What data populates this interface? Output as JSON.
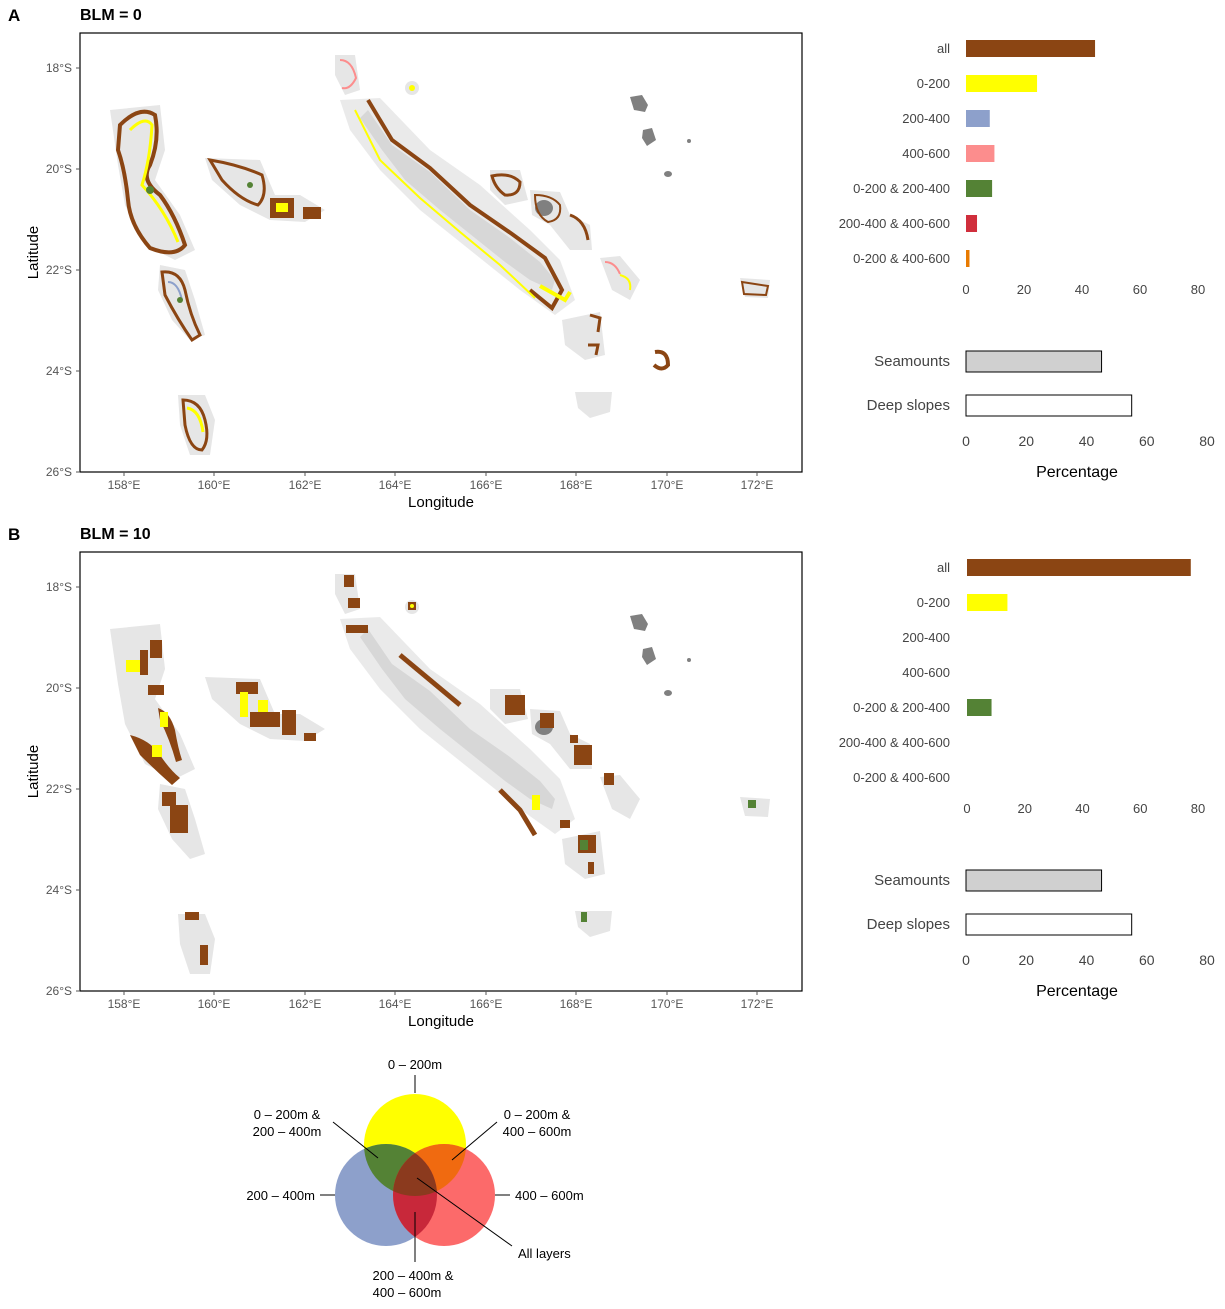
{
  "colors": {
    "all": "#8B4513",
    "d0_200": "#FFFF00",
    "d200_400": "#8DA0CB",
    "d400_600": "#FC8D8D",
    "d0_200_200_400": "#548235",
    "d200_400_400_600": "#D02E3C",
    "d0_200_400_600": "#E87A00",
    "land": "#808080",
    "seamounts": "#D0D0D0",
    "deep_slopes": "#FFFFFF",
    "mask": "#E6E6E6"
  },
  "map": {
    "x_ticks": [
      "158°E",
      "160°E",
      "162°E",
      "164°E",
      "166°E",
      "168°E",
      "170°E",
      "172°E"
    ],
    "y_ticks": [
      "18°S",
      "20°S",
      "22°S",
      "24°S",
      "26°S"
    ],
    "xlabel": "Longitude",
    "ylabel": "Latitude"
  },
  "chart_data": [
    {
      "panel": "A",
      "title": "BLM = 0",
      "type": "bar",
      "orientation": "horizontal",
      "categories": [
        "all",
        "0-200",
        "200-400",
        "400-600",
        "0-200 & 200-400",
        "200-400 & 400-600",
        "0-200 & 400-600"
      ],
      "values": [
        44.5,
        24.5,
        8.2,
        9.8,
        9.0,
        3.8,
        1.2
      ],
      "color_keys": [
        "all",
        "d0_200",
        "d200_400",
        "d400_600",
        "d0_200_200_400",
        "d200_400_400_600",
        "d0_200_400_600"
      ],
      "x_ticks": [
        0,
        20,
        40,
        60,
        80
      ],
      "xlim": [
        0,
        80
      ],
      "secondary": {
        "categories": [
          "Seamounts",
          "Deep slopes"
        ],
        "values": [
          45,
          55
        ],
        "color_keys": [
          "seamounts",
          "deep_slopes"
        ],
        "x_ticks": [
          0,
          20,
          40,
          60,
          80
        ],
        "xlim": [
          0,
          80
        ],
        "xlabel": "Percentage"
      }
    },
    {
      "panel": "B",
      "title": "BLM = 10",
      "type": "bar",
      "orientation": "horizontal",
      "categories": [
        "all",
        "0-200",
        "200-400",
        "400-600",
        "0-200 & 200-400",
        "200-400 & 400-600",
        "0-200 & 400-600"
      ],
      "values": [
        77.5,
        14.0,
        0,
        0,
        8.5,
        0,
        0
      ],
      "color_keys": [
        "all",
        "d0_200",
        "d200_400",
        "d400_600",
        "d0_200_200_400",
        "d200_400_400_600",
        "d0_200_400_600"
      ],
      "x_ticks": [
        0,
        20,
        40,
        60,
        80
      ],
      "xlim": [
        0,
        80
      ],
      "secondary": {
        "categories": [
          "Seamounts",
          "Deep slopes"
        ],
        "values": [
          45,
          55
        ],
        "color_keys": [
          "seamounts",
          "deep_slopes"
        ],
        "x_ticks": [
          0,
          20,
          40,
          60,
          80
        ],
        "xlim": [
          0,
          80
        ],
        "xlabel": "Percentage"
      }
    }
  ],
  "legend": {
    "top": "0 – 200m",
    "top_left": [
      "0 – 200m &",
      "200 – 400m"
    ],
    "top_right": [
      "0 – 200m &",
      "400 – 600m"
    ],
    "left": "200 – 400m",
    "right": "400 – 600m",
    "bottom": [
      "200 – 400m &",
      "400 – 600m"
    ],
    "all": "All layers"
  }
}
